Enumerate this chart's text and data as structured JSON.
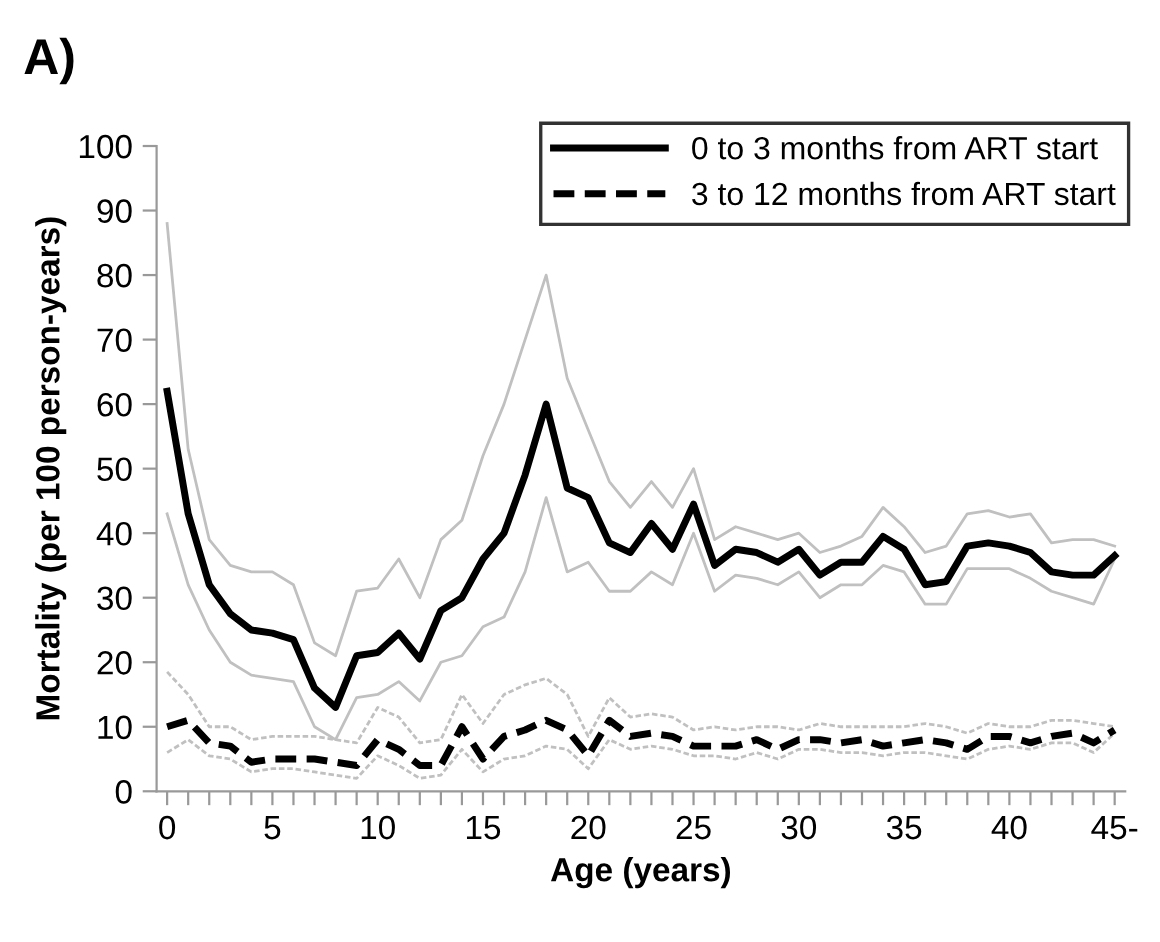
{
  "chart_data": {
    "type": "line",
    "title": "A)",
    "xlabel": "Age (years)",
    "ylabel": "Mortality (per 100 person-years)",
    "categories": [
      "0",
      null,
      null,
      null,
      null,
      "5",
      null,
      null,
      null,
      null,
      "10",
      null,
      null,
      null,
      null,
      "15",
      null,
      null,
      null,
      null,
      "20",
      null,
      null,
      null,
      null,
      "25",
      null,
      null,
      null,
      null,
      "30",
      null,
      null,
      null,
      null,
      "35",
      null,
      null,
      null,
      null,
      "40",
      null,
      null,
      null,
      null,
      "45-"
    ],
    "ylim": [
      0,
      100
    ],
    "yticks": [
      0,
      10,
      20,
      30,
      40,
      50,
      60,
      70,
      80,
      90,
      100
    ],
    "grid": false,
    "legend": "top right",
    "marker": "none",
    "series": [
      {
        "color": "#c0c0c0",
        "line_style": "solid",
        "values": [
          88,
          53,
          39,
          35,
          34,
          34,
          32,
          23,
          21,
          31,
          31.5,
          36,
          30,
          39,
          42,
          52,
          60,
          70,
          80,
          64,
          56,
          48,
          44,
          48,
          44,
          50,
          39,
          41,
          40,
          39,
          40,
          37,
          38,
          39.5,
          44,
          41,
          37,
          38,
          43,
          43.5,
          42.5,
          43,
          38.5,
          39,
          39,
          38
        ]
      },
      {
        "color": "#c0c0c0",
        "line_style": "solid",
        "values": [
          43,
          32,
          25,
          20,
          18,
          17.5,
          17,
          10,
          8,
          14.5,
          15,
          17,
          14,
          20,
          21,
          25.5,
          27,
          34,
          45.5,
          34,
          35.5,
          31,
          31,
          34,
          32,
          40,
          31,
          33.5,
          33,
          32,
          34,
          30,
          32,
          32,
          35,
          34,
          29,
          29,
          34.5,
          34.5,
          34.5,
          33,
          31,
          30,
          29,
          36
        ]
      },
      {
        "color": "#c0c0c0",
        "line_style": "dotted",
        "values": [
          18.5,
          15,
          10,
          10,
          8,
          8.5,
          8.5,
          8.5,
          8,
          7.5,
          13,
          11.5,
          7.5,
          8,
          15,
          10.5,
          15,
          16.5,
          17.5,
          15,
          8.5,
          14.5,
          11.5,
          12,
          11.5,
          9.5,
          10,
          9.5,
          10,
          10,
          9.5,
          10.5,
          10,
          10,
          10,
          10,
          10.5,
          10,
          9,
          10.5,
          10,
          10,
          11,
          11,
          10.5,
          10
        ]
      },
      {
        "color": "#c0c0c0",
        "line_style": "dotted",
        "values": [
          6,
          8,
          5.5,
          5,
          3,
          3.5,
          3.5,
          3,
          2.5,
          2,
          5.5,
          4,
          2,
          2.5,
          6.5,
          3,
          5,
          5.5,
          7,
          6.5,
          3.5,
          8,
          6.5,
          7,
          6.5,
          5.5,
          5.5,
          5,
          6,
          5,
          6.5,
          6.5,
          6,
          6,
          5.5,
          6,
          6,
          5.5,
          5,
          6.5,
          7,
          6.5,
          7.5,
          7.5,
          6,
          9
        ]
      },
      {
        "name": "0 to 3 months from ART start",
        "color": "#000000",
        "line_style": "solid",
        "values": [
          62,
          43,
          32,
          27.5,
          25,
          24.5,
          23.5,
          16,
          13,
          21,
          21.5,
          24.5,
          20.5,
          28,
          30,
          36,
          40,
          49,
          60,
          47,
          45.5,
          38.5,
          37,
          41.5,
          37.5,
          44.5,
          35,
          37.5,
          37,
          35.5,
          37.5,
          33.5,
          35.5,
          35.5,
          39.5,
          37.5,
          32,
          32.5,
          38,
          38.5,
          38,
          37,
          34,
          33.5,
          33.5,
          36.5
        ]
      },
      {
        "name": "3 to 12 months from ART start",
        "color": "#000000",
        "line_style": "dashed",
        "values": [
          10,
          11,
          7.5,
          7,
          4.5,
          5,
          5,
          5,
          4.5,
          4,
          8,
          6.5,
          4,
          4,
          10,
          5,
          8.5,
          9.5,
          11,
          9.5,
          5.5,
          11,
          8.5,
          9,
          8.5,
          7,
          7,
          7,
          8,
          6.5,
          8,
          8,
          7.5,
          8,
          7,
          7.5,
          8,
          7.5,
          6.5,
          8.5,
          8.5,
          7.5,
          8.5,
          9,
          7.5,
          9.5
        ]
      }
    ]
  }
}
